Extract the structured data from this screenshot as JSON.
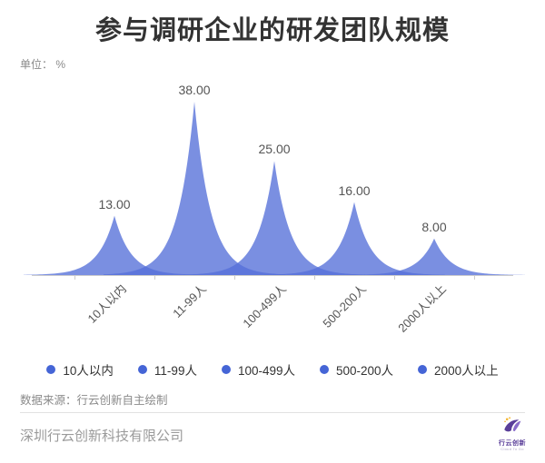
{
  "header": {
    "title": "参与调研企业的研发团队规模",
    "unit_label": "单位： %"
  },
  "chart_data": {
    "type": "area",
    "title": "参与调研企业的研发团队规模",
    "unit": "%",
    "categories": [
      "10人以内",
      "11-99人",
      "100-499人",
      "500-200人",
      "2000人以上"
    ],
    "values": [
      13,
      38,
      25,
      16,
      8
    ],
    "value_labels": [
      "13.00",
      "38.00",
      "25.00",
      "16.00",
      "8.00"
    ],
    "ylim": [
      0,
      40
    ],
    "grid": false,
    "xlabel": "",
    "ylabel": "%",
    "legend": {
      "position": "bottom",
      "items": [
        "10人以内",
        "11-99人",
        "100-499人",
        "500-200人",
        "2000人以上"
      ]
    },
    "colors": {
      "area_fill": "#5570d8",
      "area_opacity": 0.78,
      "legend_dot": "#4565d6",
      "axis_line": "#cccccc",
      "value_label": "#555555",
      "axis_label": "#555555"
    }
  },
  "footer": {
    "source": "数据来源：行云创新自主绘制",
    "company": "深圳行云创新科技有限公司",
    "logo": {
      "text": "行云创新",
      "subtext": "Cloud To Go",
      "purple": "#5a3e99",
      "violet": "#8a6cc9",
      "yellow": "#f5b731"
    }
  }
}
